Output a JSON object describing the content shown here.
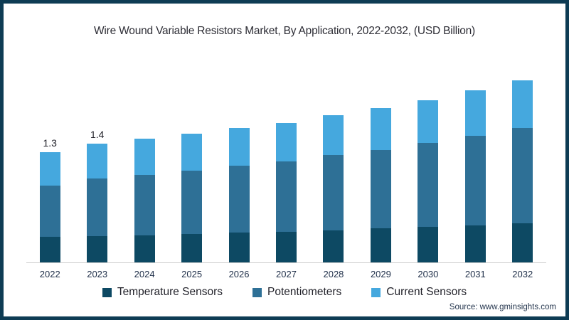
{
  "title": "Wire Wound Variable Resistors Market, By Application, 2022-2032, (USD Billion)",
  "source": "Source: www.gminsights.com",
  "frame": {
    "border_color": "#0e3c54",
    "background": "#ffffff"
  },
  "legend": [
    {
      "label": "Temperature Sensors",
      "color": "#0d4963"
    },
    {
      "label": "Potentiometers",
      "color": "#2e7096"
    },
    {
      "label": "Current Sensors",
      "color": "#45a8de"
    }
  ],
  "chart_data": {
    "type": "bar",
    "stacked": true,
    "title": "Wire Wound Variable Resistors Market, By Application, 2022-2032, (USD Billion)",
    "unit": "USD Billion",
    "xlabel": "",
    "ylabel": "",
    "ylim": [
      0,
      2.25
    ],
    "grid": false,
    "legend_position": "bottom",
    "axis_line_color": "#cfcfcf",
    "categories": [
      "2022",
      "2023",
      "2024",
      "2025",
      "2026",
      "2027",
      "2028",
      "2029",
      "2030",
      "2031",
      "2032"
    ],
    "series": [
      {
        "name": "Temperature Sensors",
        "color": "#0d4963",
        "values": [
          0.3,
          0.31,
          0.32,
          0.34,
          0.35,
          0.36,
          0.38,
          0.4,
          0.42,
          0.44,
          0.46
        ]
      },
      {
        "name": "Potentiometers",
        "color": "#2e7096",
        "values": [
          0.61,
          0.68,
          0.71,
          0.74,
          0.79,
          0.83,
          0.89,
          0.93,
          0.99,
          1.06,
          1.13
        ]
      },
      {
        "name": "Current Sensors",
        "color": "#45a8de",
        "values": [
          0.39,
          0.41,
          0.43,
          0.44,
          0.45,
          0.46,
          0.47,
          0.49,
          0.51,
          0.53,
          0.56
        ]
      }
    ],
    "totals": [
      1.3,
      1.4,
      1.46,
      1.52,
      1.59,
      1.65,
      1.74,
      1.82,
      1.92,
      2.03,
      2.15
    ],
    "data_labels": [
      "1.3",
      "1.4",
      "",
      "",
      "",
      "",
      "",
      "",
      "",
      "",
      ""
    ]
  }
}
